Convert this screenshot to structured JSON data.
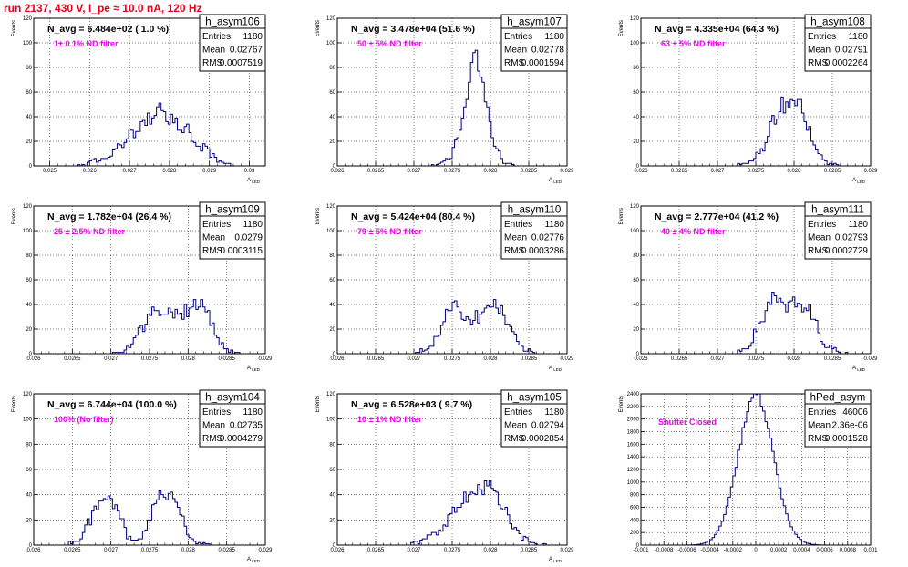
{
  "run_title": "run 2137,   430 V, I_pe ≈ 10.0 nA, 120 Hz",
  "chart_data": [
    {
      "type": "bar",
      "name": "h_asym106",
      "navg": "N_avg = 6.484e+02 ( 1.0 %)",
      "note": "1± 0.1% ND filter",
      "ylabel": "Events",
      "xlabel": "A_LED",
      "xlim": [
        0.0246,
        0.0304
      ],
      "ylim": [
        0,
        120
      ],
      "xticks": [
        0.025,
        0.026,
        0.027,
        0.028,
        0.029,
        0.03
      ],
      "xtick_labels": [
        "0.025",
        "0.026",
        "0.027",
        "0.028",
        "0.029",
        "0.03"
      ],
      "yticks": [
        0,
        20,
        40,
        60,
        80,
        100,
        120
      ],
      "stats": {
        "entries": "1180",
        "mean": "0.02767",
        "rms": "0.0007519"
      },
      "profile": [
        [
          0.0255,
          0
        ],
        [
          0.0259,
          1
        ],
        [
          0.0262,
          5
        ],
        [
          0.0266,
          12
        ],
        [
          0.027,
          25
        ],
        [
          0.02735,
          35
        ],
        [
          0.0277,
          45
        ],
        [
          0.02805,
          38
        ],
        [
          0.0284,
          30
        ],
        [
          0.0287,
          20
        ],
        [
          0.029,
          10
        ],
        [
          0.0293,
          3
        ],
        [
          0.0296,
          0
        ]
      ]
    },
    {
      "type": "bar",
      "name": "h_asym107",
      "navg": "N_avg = 3.478e+04 (51.6 %)",
      "note": "50 ± 5% ND filter",
      "ylabel": "Events",
      "xlabel": "A_LED",
      "xlim": [
        0.026,
        0.029
      ],
      "ylim": [
        0,
        120
      ],
      "xticks": [
        0.026,
        0.0265,
        0.027,
        0.0275,
        0.028,
        0.0285,
        0.029
      ],
      "xtick_labels": [
        "0.026",
        "0.0265",
        "0.027",
        "0.0275",
        "0.028",
        "0.0285",
        "0.029"
      ],
      "yticks": [
        0,
        20,
        40,
        60,
        80,
        100,
        120
      ],
      "stats": {
        "entries": "1180",
        "mean": "0.02778",
        "rms": "0.0001594"
      },
      "profile": [
        [
          0.0272,
          0
        ],
        [
          0.02735,
          2
        ],
        [
          0.0275,
          10
        ],
        [
          0.0276,
          30
        ],
        [
          0.0277,
          60
        ],
        [
          0.02778,
          95
        ],
        [
          0.0279,
          70
        ],
        [
          0.028,
          35
        ],
        [
          0.0281,
          10
        ],
        [
          0.0282,
          2
        ],
        [
          0.0284,
          0
        ]
      ]
    },
    {
      "type": "bar",
      "name": "h_asym108",
      "navg": "N_avg = 4.335e+04 (64.3 %)",
      "note": "63 ± 5% ND filter",
      "ylabel": "Events",
      "xlabel": "A_LED",
      "xlim": [
        0.026,
        0.029
      ],
      "ylim": [
        0,
        120
      ],
      "xticks": [
        0.026,
        0.0265,
        0.027,
        0.0275,
        0.028,
        0.0285,
        0.029
      ],
      "xtick_labels": [
        "0.026",
        "0.0265",
        "0.027",
        "0.0275",
        "0.028",
        "0.0285",
        "0.029"
      ],
      "yticks": [
        0,
        20,
        40,
        60,
        80,
        100,
        120
      ],
      "stats": {
        "entries": "1180",
        "mean": "0.02791",
        "rms": "0.0002264"
      },
      "profile": [
        [
          0.0272,
          0
        ],
        [
          0.02745,
          3
        ],
        [
          0.0276,
          15
        ],
        [
          0.0277,
          35
        ],
        [
          0.02785,
          50
        ],
        [
          0.028,
          55
        ],
        [
          0.0281,
          48
        ],
        [
          0.0282,
          30
        ],
        [
          0.0283,
          12
        ],
        [
          0.0284,
          3
        ],
        [
          0.0286,
          0
        ]
      ]
    },
    {
      "type": "bar",
      "name": "h_asym109",
      "navg": "N_avg = 1.782e+04 (26.4 %)",
      "note": "25 ± 2.5% ND filter",
      "ylabel": "Events",
      "xlabel": "A_LED",
      "xlim": [
        0.026,
        0.029
      ],
      "ylim": [
        0,
        120
      ],
      "xticks": [
        0.026,
        0.0265,
        0.027,
        0.0275,
        0.028,
        0.0285,
        0.029
      ],
      "xtick_labels": [
        "0.026",
        "0.0265",
        "0.027",
        "0.0275",
        "0.028",
        "0.0285",
        "0.029"
      ],
      "yticks": [
        0,
        20,
        40,
        60,
        80,
        100,
        120
      ],
      "stats": {
        "entries": "1180",
        "mean": "0.0279",
        "rms": "0.0003115"
      },
      "profile": [
        [
          0.027,
          0
        ],
        [
          0.0272,
          4
        ],
        [
          0.0274,
          20
        ],
        [
          0.0276,
          38
        ],
        [
          0.0278,
          32
        ],
        [
          0.028,
          36
        ],
        [
          0.0282,
          40
        ],
        [
          0.0283,
          28
        ],
        [
          0.0284,
          10
        ],
        [
          0.0285,
          3
        ],
        [
          0.0287,
          0
        ]
      ]
    },
    {
      "type": "bar",
      "name": "h_asym110",
      "navg": "N_avg = 5.424e+04 (80.4 %)",
      "note": "79 ± 5% ND filter",
      "ylabel": "Events",
      "xlabel": "A_LED",
      "xlim": [
        0.026,
        0.029
      ],
      "ylim": [
        0,
        120
      ],
      "xticks": [
        0.026,
        0.0265,
        0.027,
        0.0275,
        0.028,
        0.0285,
        0.029
      ],
      "xtick_labels": [
        "0.026",
        "0.0265",
        "0.027",
        "0.0275",
        "0.028",
        "0.0285",
        "0.029"
      ],
      "yticks": [
        0,
        20,
        40,
        60,
        80,
        100,
        120
      ],
      "stats": {
        "entries": "1180",
        "mean": "0.02776",
        "rms": "0.0003286"
      },
      "profile": [
        [
          0.027,
          0
        ],
        [
          0.0272,
          5
        ],
        [
          0.0274,
          25
        ],
        [
          0.0275,
          45
        ],
        [
          0.0277,
          28
        ],
        [
          0.0279,
          30
        ],
        [
          0.028,
          42
        ],
        [
          0.0281,
          38
        ],
        [
          0.0283,
          15
        ],
        [
          0.0284,
          5
        ],
        [
          0.0286,
          0
        ]
      ]
    },
    {
      "type": "bar",
      "name": "h_asym111",
      "navg": "N_avg = 2.777e+04 (41.2 %)",
      "note": "40 ± 4% ND filter",
      "ylabel": "Events",
      "xlabel": "A_LED",
      "xlim": [
        0.026,
        0.029
      ],
      "ylim": [
        0,
        120
      ],
      "xticks": [
        0.026,
        0.0265,
        0.027,
        0.0275,
        0.028,
        0.0285,
        0.029
      ],
      "xtick_labels": [
        "0.026",
        "0.0265",
        "0.027",
        "0.0275",
        "0.028",
        "0.0285",
        "0.029"
      ],
      "yticks": [
        0,
        20,
        40,
        60,
        80,
        100,
        120
      ],
      "stats": {
        "entries": "1180",
        "mean": "0.02793",
        "rms": "0.0002729"
      },
      "profile": [
        [
          0.0272,
          0
        ],
        [
          0.0274,
          6
        ],
        [
          0.0276,
          30
        ],
        [
          0.0277,
          45
        ],
        [
          0.0279,
          38
        ],
        [
          0.028,
          40
        ],
        [
          0.0282,
          35
        ],
        [
          0.0283,
          22
        ],
        [
          0.0284,
          8
        ],
        [
          0.0286,
          1
        ],
        [
          0.0287,
          0
        ]
      ]
    },
    {
      "type": "bar",
      "name": "h_asym104",
      "navg": "N_avg = 6.744e+04 (100.0 %)",
      "note": "100% (No filter)",
      "ylabel": "Events",
      "xlabel": "A_LED",
      "xlim": [
        0.026,
        0.029
      ],
      "ylim": [
        0,
        120
      ],
      "xticks": [
        0.026,
        0.0265,
        0.027,
        0.0275,
        0.028,
        0.0285,
        0.029
      ],
      "xtick_labels": [
        "0.026",
        "0.0265",
        "0.027",
        "0.0275",
        "0.028",
        "0.0285",
        "0.029"
      ],
      "yticks": [
        0,
        20,
        40,
        60,
        80,
        100,
        120
      ],
      "stats": {
        "entries": "1180",
        "mean": "0.02735",
        "rms": "0.0004279"
      },
      "profile": [
        [
          0.0264,
          0
        ],
        [
          0.0266,
          5
        ],
        [
          0.0268,
          28
        ],
        [
          0.0269,
          45
        ],
        [
          0.0271,
          30
        ],
        [
          0.0272,
          8
        ],
        [
          0.0273,
          2
        ],
        [
          0.0274,
          6
        ],
        [
          0.0276,
          35
        ],
        [
          0.0277,
          45
        ],
        [
          0.0279,
          30
        ],
        [
          0.028,
          10
        ],
        [
          0.0281,
          2
        ],
        [
          0.0283,
          0
        ]
      ]
    },
    {
      "type": "bar",
      "name": "h_asym105",
      "navg": "N_avg = 6.528e+03 ( 9.7 %)",
      "note": "10 ± 1% ND filter",
      "ylabel": "Events",
      "xlabel": "A_LED",
      "xlim": [
        0.026,
        0.029
      ],
      "ylim": [
        0,
        120
      ],
      "xticks": [
        0.026,
        0.0265,
        0.027,
        0.0275,
        0.028,
        0.0285,
        0.029
      ],
      "xtick_labels": [
        "0.026",
        "0.0265",
        "0.027",
        "0.0275",
        "0.028",
        "0.0285",
        "0.029"
      ],
      "yticks": [
        0,
        20,
        40,
        60,
        80,
        100,
        120
      ],
      "stats": {
        "entries": "1180",
        "mean": "0.02794",
        "rms": "0.0002854"
      },
      "profile": [
        [
          0.0269,
          0
        ],
        [
          0.0271,
          3
        ],
        [
          0.0273,
          10
        ],
        [
          0.0275,
          25
        ],
        [
          0.0277,
          38
        ],
        [
          0.02795,
          50
        ],
        [
          0.0281,
          35
        ],
        [
          0.0283,
          15
        ],
        [
          0.0284,
          6
        ],
        [
          0.0286,
          1
        ],
        [
          0.0288,
          0
        ]
      ]
    },
    {
      "type": "bar",
      "name": "hPed_asym",
      "navg": "",
      "note": "Shutter Closed",
      "ylabel": "Events",
      "xlabel": "",
      "xlim": [
        -0.001,
        0.001
      ],
      "ylim": [
        0,
        2400
      ],
      "xticks": [
        -0.001,
        -0.0008,
        -0.0006,
        -0.0004,
        -0.0002,
        0,
        0.0002,
        0.0004,
        0.0006,
        0.0008,
        0.001
      ],
      "xtick_labels": [
        "-0.001",
        "-0.0008",
        "-0.0006",
        "-0.0004",
        "-0.0002",
        "0",
        "0.0002",
        "0.0004",
        "0.0006",
        "0.0008",
        "0.001"
      ],
      "yticks": [
        0,
        200,
        400,
        600,
        800,
        1000,
        1200,
        1400,
        1600,
        1800,
        2000,
        2200,
        2400
      ],
      "stats": {
        "entries": "46006",
        "mean": "2.36e-06",
        "rms": "0.0001528"
      },
      "gauss": {
        "mu": 0.0,
        "sigma": 0.000152,
        "peak": 2380,
        "bins": 100
      }
    }
  ]
}
